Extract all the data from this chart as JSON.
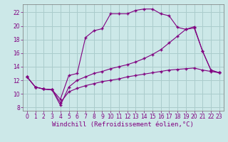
{
  "xlabel": "Windchill (Refroidissement éolien,°C)",
  "background_color": "#cce8e8",
  "grid_color": "#aacccc",
  "line_color": "#800080",
  "marker": "+",
  "x_ticks": [
    0,
    1,
    2,
    3,
    4,
    5,
    6,
    7,
    8,
    9,
    10,
    11,
    12,
    13,
    14,
    15,
    16,
    17,
    18,
    19,
    20,
    21,
    22,
    23
  ],
  "y_ticks": [
    8,
    10,
    12,
    14,
    16,
    18,
    20,
    22
  ],
  "xlim": [
    -0.5,
    23.5
  ],
  "ylim": [
    7.5,
    23.2
  ],
  "line1_x": [
    0,
    1,
    2,
    3,
    4,
    5,
    6,
    7,
    8,
    9,
    10,
    11,
    12,
    13,
    14,
    15,
    16,
    17,
    18,
    19,
    20,
    21,
    22,
    23
  ],
  "line1_y": [
    12.5,
    11.0,
    10.7,
    10.6,
    9.2,
    12.7,
    13.0,
    18.3,
    19.3,
    19.6,
    21.8,
    21.8,
    21.8,
    22.3,
    22.5,
    22.5,
    21.8,
    21.5,
    19.8,
    19.5,
    19.7,
    16.3,
    13.5,
    13.1
  ],
  "line2_x": [
    0,
    1,
    2,
    3,
    4,
    5,
    6,
    7,
    8,
    9,
    10,
    11,
    12,
    13,
    14,
    15,
    16,
    17,
    18,
    19,
    20,
    21,
    22,
    23
  ],
  "line2_y": [
    12.5,
    11.0,
    10.7,
    10.6,
    8.3,
    11.0,
    12.0,
    12.5,
    13.0,
    13.3,
    13.7,
    14.0,
    14.3,
    14.7,
    15.2,
    15.8,
    16.5,
    17.5,
    18.5,
    19.5,
    19.9,
    16.3,
    13.5,
    13.1
  ],
  "line3_x": [
    0,
    1,
    2,
    3,
    4,
    5,
    6,
    7,
    8,
    9,
    10,
    11,
    12,
    13,
    14,
    15,
    16,
    17,
    18,
    19,
    20,
    21,
    22,
    23
  ],
  "line3_y": [
    12.5,
    11.0,
    10.7,
    10.6,
    8.7,
    10.3,
    10.8,
    11.2,
    11.5,
    11.8,
    12.0,
    12.2,
    12.5,
    12.7,
    12.9,
    13.1,
    13.3,
    13.5,
    13.6,
    13.7,
    13.8,
    13.5,
    13.3,
    13.1
  ],
  "tick_fontsize": 5.5,
  "xlabel_fontsize": 6.5
}
